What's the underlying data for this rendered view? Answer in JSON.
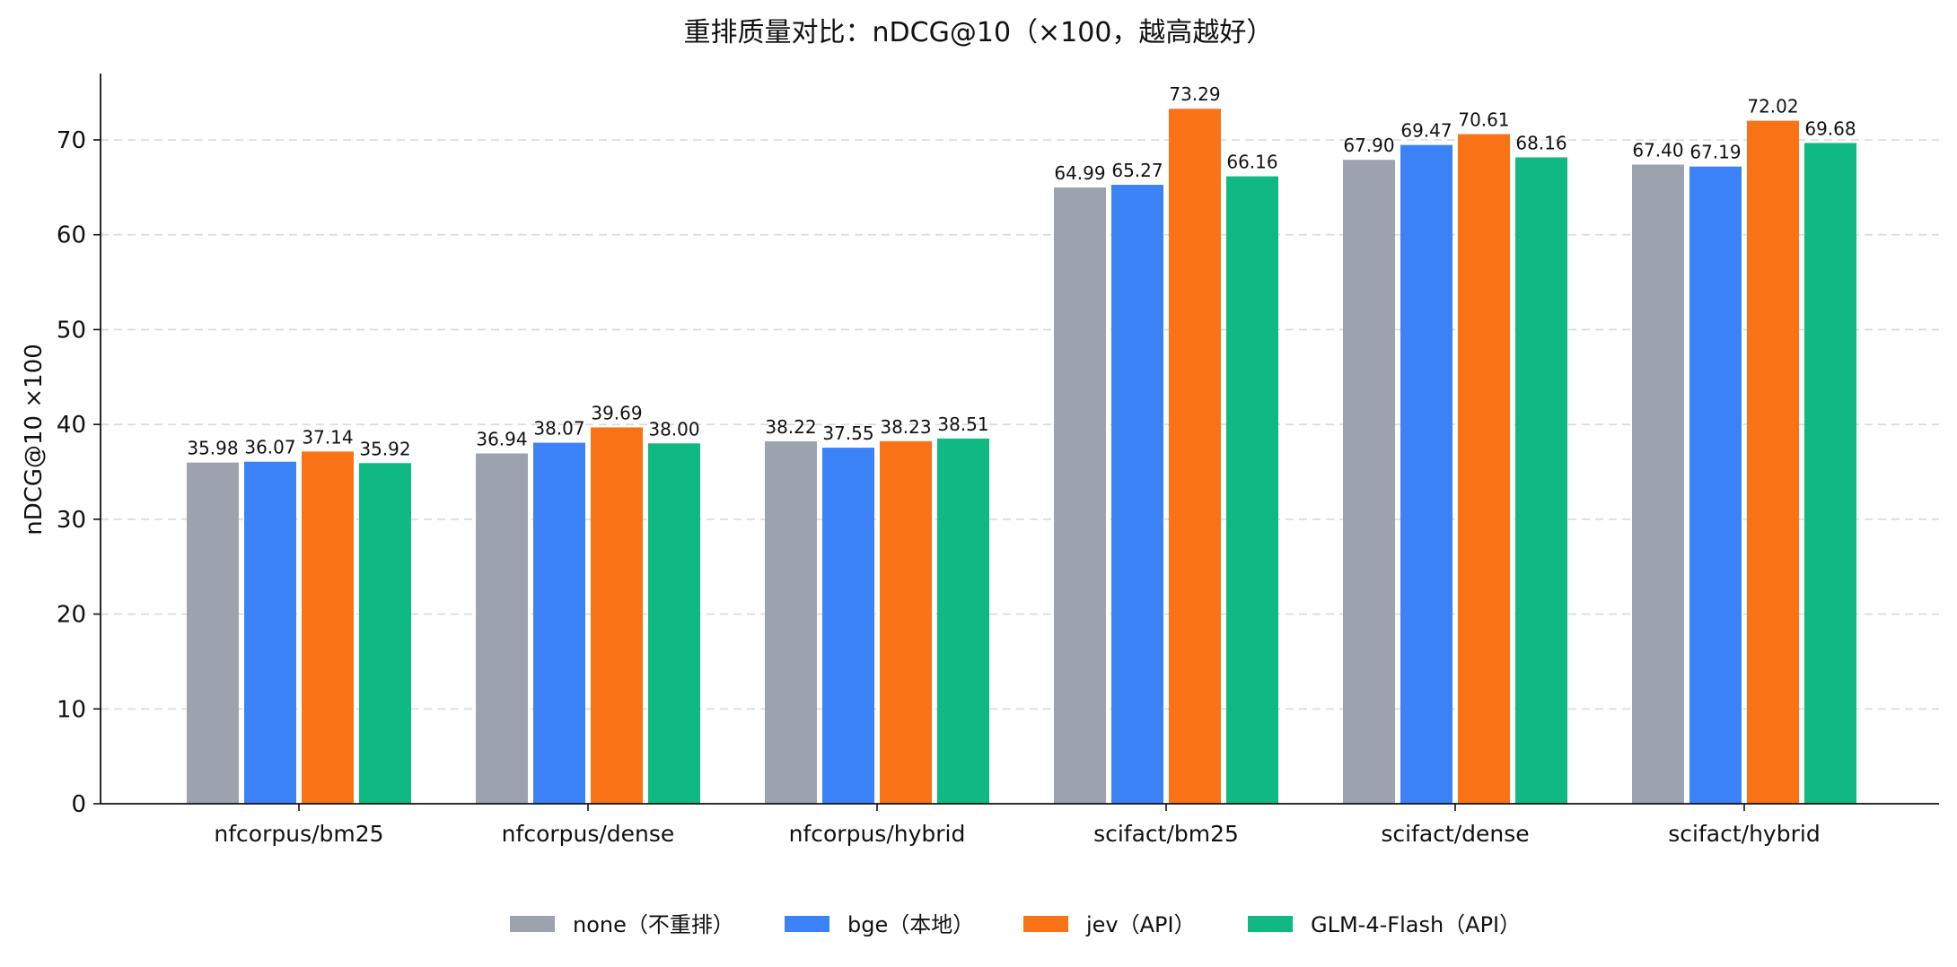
{
  "chart_data": {
    "type": "bar",
    "title": "重排质量对比：nDCG@10（×100，越高越好）",
    "xlabel": "",
    "ylabel": "nDCG@10 ×100",
    "ylim": [
      0,
      77
    ],
    "yticks": [
      0,
      10,
      20,
      30,
      40,
      50,
      60,
      70
    ],
    "grid": "horizontal-dashed",
    "legend_position": "bottom-center",
    "categories": [
      "nfcorpus/bm25",
      "nfcorpus/dense",
      "nfcorpus/hybrid",
      "scifact/bm25",
      "scifact/dense",
      "scifact/hybrid"
    ],
    "series": [
      {
        "name": "none（不重排）",
        "color": "#9ca3af",
        "values": [
          35.98,
          36.94,
          38.22,
          64.99,
          67.9,
          67.4
        ],
        "labels": [
          "35.98",
          "36.94",
          "38.22",
          "64.99",
          "67.90",
          "67.40"
        ]
      },
      {
        "name": "bge（本地）",
        "color": "#3b82f6",
        "values": [
          36.07,
          38.07,
          37.55,
          65.27,
          69.47,
          67.19
        ],
        "labels": [
          "36.07",
          "38.07",
          "37.55",
          "65.27",
          "69.47",
          "67.19"
        ]
      },
      {
        "name": "jev（API）",
        "color": "#f97316",
        "values": [
          37.14,
          39.69,
          38.23,
          73.29,
          70.61,
          72.02
        ],
        "labels": [
          "37.14",
          "39.69",
          "38.23",
          "73.29",
          "70.61",
          "72.02"
        ]
      },
      {
        "name": "GLM-4-Flash（API）",
        "color": "#10b981",
        "values": [
          35.92,
          38.0,
          38.51,
          66.16,
          68.16,
          69.68
        ],
        "labels": [
          "35.92",
          "38.00",
          "38.51",
          "66.16",
          "68.16",
          "69.68"
        ]
      }
    ]
  }
}
